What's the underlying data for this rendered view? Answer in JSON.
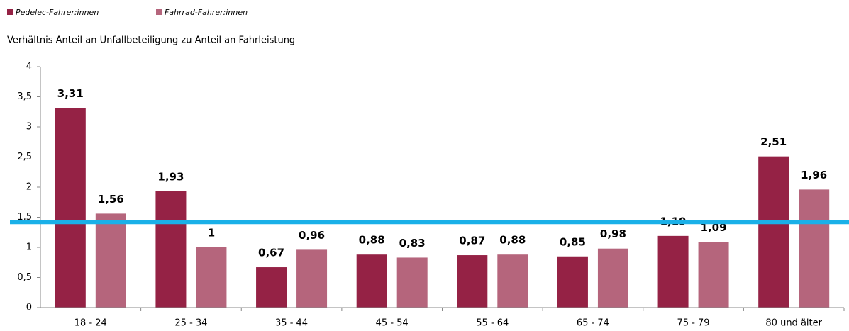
{
  "chart_data": {
    "type": "bar",
    "subtitle": "Verhältnis Anteil an Unfallbeteiligung zu Anteil an Fahrleistung",
    "categories": [
      "18 - 24",
      "25 - 34",
      "35 - 44",
      "45 - 54",
      "55 - 64",
      "65 - 74",
      "75 - 79",
      "80 und älter"
    ],
    "series": [
      {
        "name": "Pedelec-Fahrer:innen",
        "color": "#952245",
        "values": [
          3.31,
          1.93,
          0.67,
          0.88,
          0.87,
          0.85,
          1.19,
          2.51
        ],
        "value_labels": [
          "3,31",
          "1,93",
          "0,67",
          "0,88",
          "0,87",
          "0,85",
          "1,19",
          "2,51"
        ]
      },
      {
        "name": "Fahrrad-Fahrer:innen",
        "color": "#b5657c",
        "values": [
          1.56,
          1,
          0.96,
          0.83,
          0.88,
          0.98,
          1.09,
          1.96
        ],
        "value_labels": [
          "1,56",
          "1",
          "0,96",
          "0,83",
          "0,88",
          "0,98",
          "1,09",
          "1,96"
        ]
      }
    ],
    "ylim": [
      0,
      4
    ],
    "yticks": [
      0,
      {
        "value": 0.5,
        "label": "0,5"
      },
      1,
      {
        "value": 1.5,
        "label": "1,5"
      },
      2,
      {
        "value": 2.5,
        "label": "2,5"
      },
      3,
      {
        "value": 3.5,
        "label": "3,5"
      },
      4
    ],
    "reference_line": {
      "value": 1.42,
      "color": "#1ab0e8"
    },
    "legend": "top-left"
  }
}
